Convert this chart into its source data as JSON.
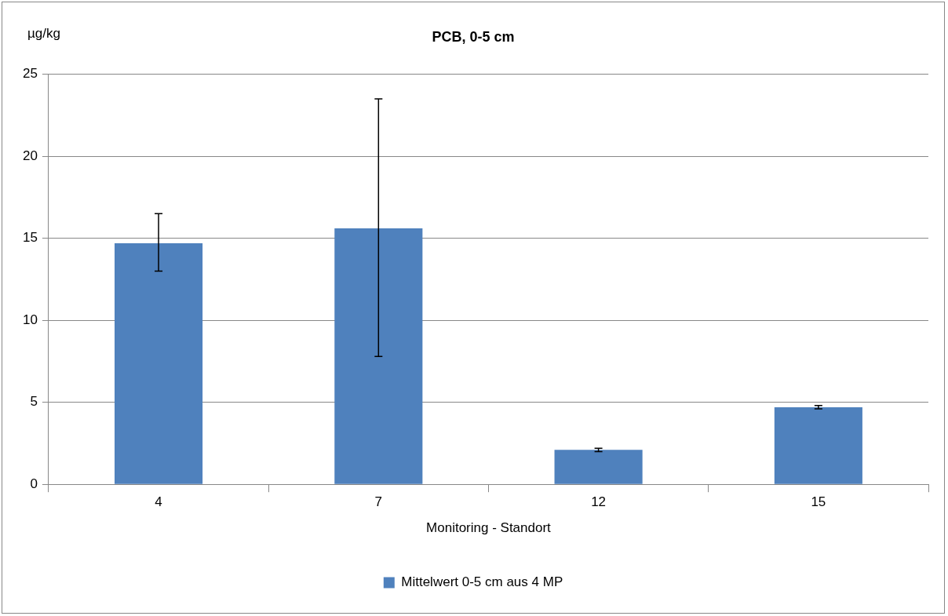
{
  "chart_data": {
    "type": "bar",
    "title": "PCB, 0-5 cm",
    "xlabel": "Monitoring - Standort",
    "ylabel": "µg/kg",
    "categories": [
      "4",
      "7",
      "12",
      "15"
    ],
    "series": [
      {
        "name": "Mittelwert 0-5 cm aus 4 MP",
        "color": "#4f81bd",
        "values": [
          14.7,
          15.6,
          2.1,
          4.7
        ],
        "errors": [
          [
            13.0,
            16.5
          ],
          [
            7.8,
            23.5
          ],
          0.1,
          0.1
        ]
      }
    ],
    "ylim": [
      0,
      25
    ],
    "yticks": [
      0,
      5,
      10,
      15,
      20,
      25
    ],
    "grid": "y",
    "legend": "bottom"
  }
}
